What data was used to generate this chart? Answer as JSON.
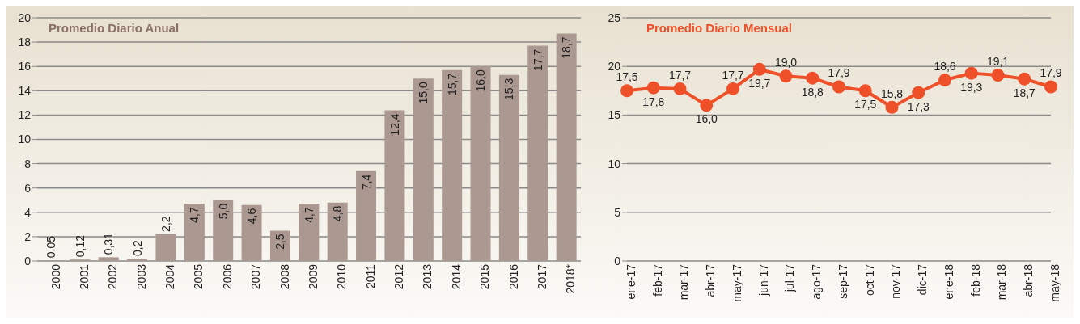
{
  "chart_data": [
    {
      "type": "bar",
      "title": "Promedio Diario Anual",
      "categories": [
        "2000",
        "2001",
        "2002",
        "2003",
        "2004",
        "2005",
        "2006",
        "2007",
        "2008",
        "2009",
        "2010",
        "2011",
        "2012",
        "2013",
        "2014",
        "2015",
        "2016",
        "2017",
        "2018*"
      ],
      "values": [
        0.05,
        0.12,
        0.31,
        0.2,
        2.2,
        4.7,
        5.0,
        4.6,
        2.5,
        4.7,
        4.8,
        7.4,
        12.4,
        15.0,
        15.7,
        16.0,
        15.3,
        17.7,
        18.7
      ],
      "value_labels": [
        "0,05",
        "0,12",
        "0,31",
        "0,2",
        "2,2",
        "4,7",
        "5,0",
        "4,6",
        "2,5",
        "4,7",
        "4,8",
        "7,4",
        "12,4",
        "15,0",
        "15,7",
        "16,0",
        "15,3",
        "17,7",
        "18,7"
      ],
      "color": "#ab9890",
      "ylim": [
        0,
        20
      ],
      "yticks": [
        0,
        2,
        4,
        6,
        8,
        10,
        12,
        14,
        16,
        18,
        20
      ],
      "grid": "y"
    },
    {
      "type": "line",
      "title": "Promedio Diario Mensual",
      "categories": [
        "ene-17",
        "feb-17",
        "mar-17",
        "abr-17",
        "may-17",
        "jun-17",
        "jul-17",
        "ago-17",
        "sep-17",
        "oct-17",
        "nov-17",
        "dic-17",
        "ene-18",
        "feb-18",
        "mar-18",
        "abr-18",
        "may-18"
      ],
      "values": [
        17.5,
        17.8,
        17.7,
        16.0,
        17.7,
        19.7,
        19.0,
        18.8,
        17.9,
        17.5,
        15.8,
        17.3,
        18.6,
        19.3,
        19.1,
        18.7,
        17.9
      ],
      "value_labels": [
        "17,5",
        "17,8",
        "17,7",
        "16,0",
        "17,7",
        "19,7",
        "19,0",
        "18,8",
        "17,9",
        "17,5",
        "15,8",
        "17,3",
        "18,6",
        "19,3",
        "19,1",
        "18,7",
        "17,9"
      ],
      "color": "#ee5029",
      "marker": "circle",
      "line_style": "solid",
      "ylim": [
        0,
        25
      ],
      "yticks": [
        0,
        5,
        10,
        15,
        20,
        25
      ],
      "grid": "y"
    }
  ]
}
